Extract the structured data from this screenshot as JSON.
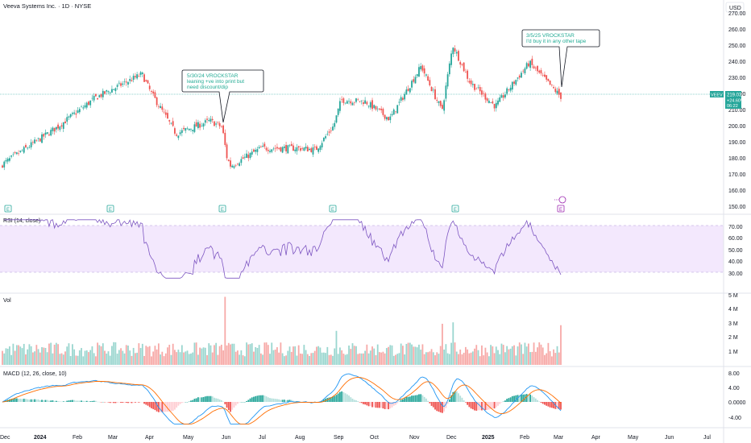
{
  "header": {
    "symbol_title": "Veeva Systems Inc. · 1D · NYSE",
    "currency": "USD"
  },
  "price_panel": {
    "ticker": "VEEV",
    "last_price": "219.03",
    "change_pct": "+24.60%",
    "countdown": "06:22",
    "y_ticks": [
      "270.00",
      "260.00",
      "250.00",
      "240.00",
      "230.00",
      "220.00",
      "210.00",
      "200.00",
      "190.00",
      "180.00",
      "170.00",
      "160.00",
      "150.00"
    ],
    "earnings_markers": [
      "E",
      "E",
      "E",
      "E",
      "E",
      "E"
    ],
    "annotations": [
      {
        "lines": [
          "5/30/24 VROCKSTAR",
          "leaning +ve into print but",
          "need discount/dip"
        ]
      },
      {
        "lines": [
          "3/5/25 VROCKSTAR",
          "I'd buy it in any other tape"
        ]
      }
    ]
  },
  "rsi_panel": {
    "label": "RSI (14, close)",
    "y_ticks": [
      "70.00",
      "60.00",
      "50.00",
      "40.00",
      "30.00"
    ]
  },
  "vol_panel": {
    "label": "Vol",
    "y_ticks": [
      "5 M",
      "4 M",
      "3 M",
      "2 M",
      "1 M"
    ]
  },
  "macd_panel": {
    "label": "MACD (12, 26, close, 10)",
    "y_ticks": [
      "8.00",
      "4.00",
      "0.0000",
      "-4.00"
    ]
  },
  "time_axis": {
    "labels": [
      "Dec",
      "2024",
      "Feb",
      "Mar",
      "Apr",
      "May",
      "Jun",
      "Jul",
      "Aug",
      "Sep",
      "Oct",
      "Nov",
      "Dec",
      "2025",
      "Feb",
      "Mar",
      "Apr",
      "May",
      "Jun",
      "Jul"
    ]
  },
  "colors": {
    "up": "#26a69a",
    "down": "#ef5350",
    "rsi_line": "#7e57c2",
    "rsi_band": "#f3e8fd",
    "macd_line": "#2196f3",
    "signal_line": "#ff6d00",
    "price_line": "#26a69a"
  },
  "chart_data": {
    "type": "candlestick",
    "price_range": [
      150,
      272
    ],
    "last_price": 219.03,
    "price_path_checkpoints": [
      {
        "date": "2023-12-01",
        "close": 177
      },
      {
        "date": "2024-01-15",
        "close": 200
      },
      {
        "date": "2024-02-15",
        "close": 218
      },
      {
        "date": "2024-03-25",
        "close": 233
      },
      {
        "date": "2024-04-01",
        "close": 222
      },
      {
        "date": "2024-04-22",
        "close": 196
      },
      {
        "date": "2024-05-20",
        "close": 204
      },
      {
        "date": "2024-05-30",
        "close": 200
      },
      {
        "date": "2024-06-03",
        "close": 181
      },
      {
        "date": "2024-06-06",
        "close": 176
      },
      {
        "date": "2024-07-01",
        "close": 187
      },
      {
        "date": "2024-08-01",
        "close": 187
      },
      {
        "date": "2024-08-15",
        "close": 186
      },
      {
        "date": "2024-08-30",
        "close": 201
      },
      {
        "date": "2024-09-05",
        "close": 217
      },
      {
        "date": "2024-09-25",
        "close": 216
      },
      {
        "date": "2024-10-15",
        "close": 205
      },
      {
        "date": "2024-11-10",
        "close": 238
      },
      {
        "date": "2024-11-27",
        "close": 210
      },
      {
        "date": "2024-12-06",
        "close": 251
      },
      {
        "date": "2024-12-20",
        "close": 228
      },
      {
        "date": "2025-01-10",
        "close": 213
      },
      {
        "date": "2025-02-07",
        "close": 240
      },
      {
        "date": "2025-03-05",
        "close": 219
      }
    ],
    "rsi_range": [
      25,
      75
    ],
    "rsi_band": [
      30,
      70
    ],
    "volume_range_millions": [
      0,
      5
    ],
    "volume_spikes": [
      {
        "date": "2024-06-01",
        "volume_m": 4.8
      },
      {
        "date": "2024-09-01",
        "volume_m": 2.4
      },
      {
        "date": "2024-11-27",
        "volume_m": 2.9
      },
      {
        "date": "2024-12-06",
        "volume_m": 3.0
      },
      {
        "date": "2025-03-05",
        "volume_m": 2.8
      }
    ],
    "macd_range": [
      -6,
      9
    ]
  }
}
